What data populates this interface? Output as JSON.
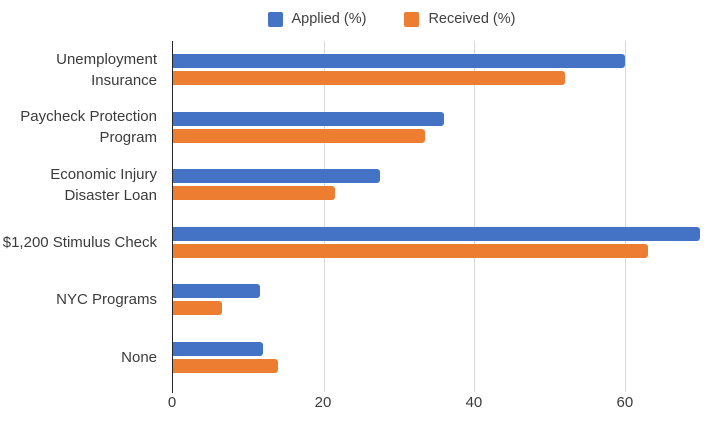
{
  "legend": {
    "position": "top-center"
  },
  "chart_data": {
    "type": "bar",
    "orientation": "horizontal",
    "title": "",
    "xlabel": "",
    "ylabel": "",
    "categories": [
      "Unemployment\nInsurance",
      "Paycheck Protection\nProgram",
      "Economic Injury\nDisaster Loan",
      "$1,200 Stimulus Check",
      "NYC Programs",
      "None"
    ],
    "series": [
      {
        "name": "Applied (%)",
        "color": "#4472C4",
        "values": [
          60,
          36,
          27.5,
          70,
          11.5,
          12
        ]
      },
      {
        "name": "Received (%)",
        "color": "#ED7D31",
        "values": [
          52,
          33.5,
          21.5,
          63,
          6.5,
          14
        ]
      }
    ],
    "x_ticks": [
      0,
      20,
      40,
      60
    ],
    "xlim": [
      0,
      73
    ],
    "grid": true,
    "legend_position": "top"
  },
  "colors": {
    "grid": "#d9d9d9",
    "axis": "#262626",
    "text": "#3b3b3b",
    "background": "#ffffff"
  }
}
